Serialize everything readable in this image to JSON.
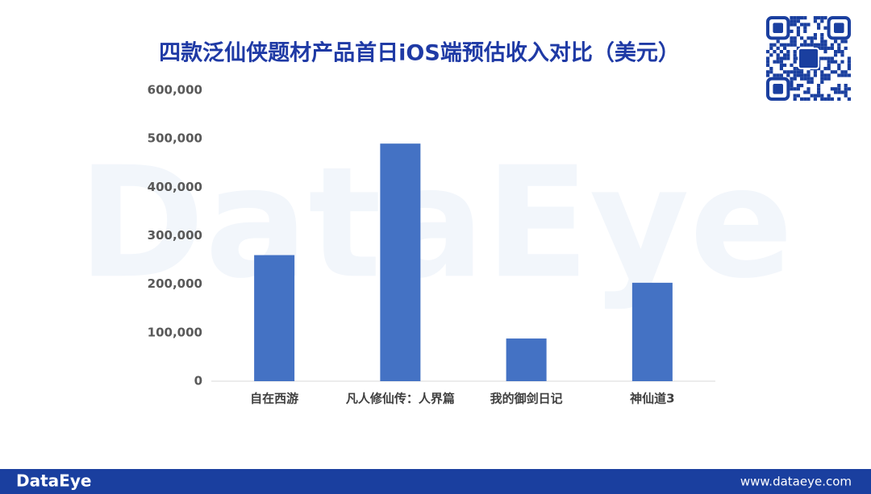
{
  "chart_data": {
    "type": "bar",
    "title": "四款泛仙侠题材产品首日iOS端预估收入对比（美元）",
    "categories": [
      "自在西游",
      "凡人修仙传：人界篇",
      "我的御剑日记",
      "神仙道3"
    ],
    "values": [
      260000,
      490000,
      88000,
      203000
    ],
    "color": "#4472c4",
    "ylim": [
      0,
      600000
    ],
    "yticks": [
      0,
      {
        "value": 100000,
        "label": "100,000"
      },
      {
        "value": 200000,
        "label": "200,000"
      },
      {
        "value": 300000,
        "label": "300,000"
      },
      {
        "value": 400000,
        "label": "400,000"
      },
      {
        "value": 500000,
        "label": "500,000"
      },
      {
        "value": 600000,
        "label": "600,000"
      }
    ],
    "grid": false
  },
  "watermark": "DataEye",
  "footer": {
    "brand": "DataEye",
    "url": "www.dataeye.com"
  }
}
